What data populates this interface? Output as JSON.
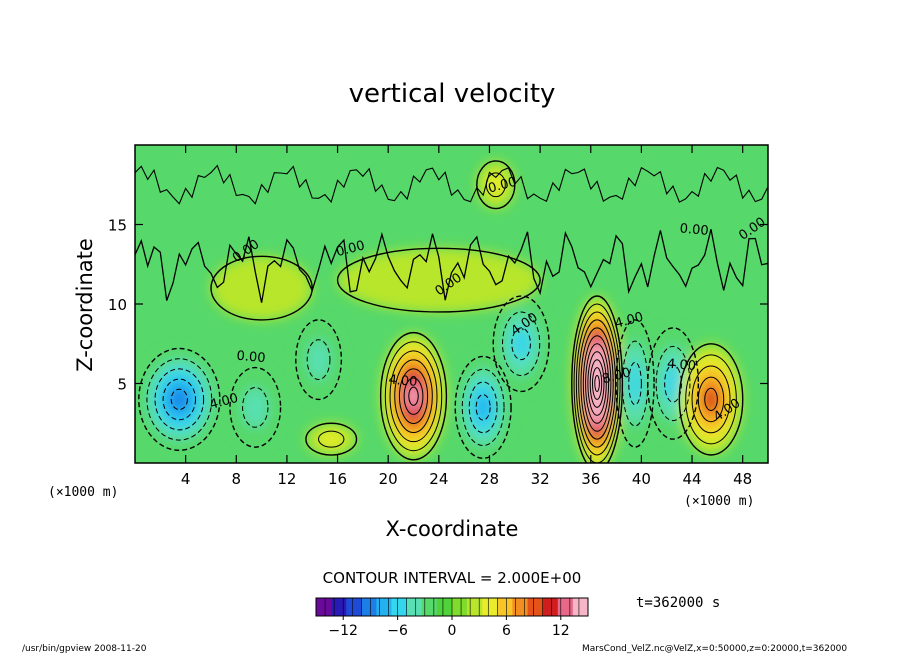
{
  "chart_data": {
    "type": "heatmap",
    "title": "vertical velocity",
    "xlabel": "X-coordinate",
    "ylabel": "Z-coordinate",
    "x_unit_left": "(×1000 m)",
    "x_unit_right": "(×1000 m)",
    "xlim": [
      0,
      50
    ],
    "ylim": [
      0,
      20
    ],
    "x_ticks": [
      4,
      8,
      12,
      16,
      20,
      24,
      28,
      32,
      36,
      40,
      44,
      48
    ],
    "y_ticks": [
      5,
      10,
      15
    ],
    "contour_interval_text": "CONTOUR INTERVAL = 2.000E+00",
    "time_text": "t=362000 s",
    "colorbar": {
      "ticks": [
        -12,
        -6,
        0,
        6,
        12
      ],
      "min": -15,
      "max": 15,
      "colors": [
        "#6a0a9a",
        "#2a1ab5",
        "#1f4ad8",
        "#1e7ee8",
        "#23b1ef",
        "#34d6ee",
        "#58e0b2",
        "#56d86a",
        "#4fd23a",
        "#7fdc2c",
        "#b8e62c",
        "#e8ec2c",
        "#f7c528",
        "#f38f20",
        "#e65318",
        "#d01e1e",
        "#e8688a",
        "#f6b6c8"
      ]
    },
    "contour_labels": [
      "0.00",
      "0.00",
      "0.00",
      "0.00",
      "0.00",
      "0.00",
      "0.00",
      "4.00",
      "4.00",
      "4.00",
      "4.00",
      "4.00",
      "4.00",
      "8.00"
    ],
    "cells": [
      {
        "x": 3.0,
        "z": 4.5,
        "w": 0.7
      },
      {
        "x": 3.5,
        "z": 4.0,
        "w": -9.0,
        "sx": 3.2,
        "sz": 3.2
      },
      {
        "x": 9.5,
        "z": 3.5,
        "w": -4.0,
        "sx": 2.0,
        "sz": 2.5
      },
      {
        "x": 14.5,
        "z": 6.5,
        "w": -4.5,
        "sx": 1.8,
        "sz": 2.5
      },
      {
        "x": 15.5,
        "z": 1.5,
        "w": 4.0,
        "sx": 2.0,
        "sz": 1.0
      },
      {
        "x": 22.0,
        "z": 4.2,
        "w": 14.0,
        "sx": 2.6,
        "sz": 4.0
      },
      {
        "x": 27.5,
        "z": 3.5,
        "w": -7.0,
        "sx": 2.2,
        "sz": 3.2
      },
      {
        "x": 30.5,
        "z": 7.5,
        "w": -5.0,
        "sx": 2.2,
        "sz": 3.0
      },
      {
        "x": 36.5,
        "z": 5.0,
        "w": 22.0,
        "sx": 2.0,
        "sz": 5.5
      },
      {
        "x": 39.5,
        "z": 5.0,
        "w": -5.0,
        "sx": 1.5,
        "sz": 4.0
      },
      {
        "x": 42.5,
        "z": 5.0,
        "w": -6.0,
        "sx": 2.0,
        "sz": 3.5
      },
      {
        "x": 45.5,
        "z": 4.0,
        "w": 10.0,
        "sx": 2.5,
        "sz": 3.5
      },
      {
        "x": 28.5,
        "z": 17.5,
        "w": 4.0,
        "sx": 1.5,
        "sz": 1.5
      },
      {
        "x": 24.0,
        "z": 11.5,
        "w": 2.0,
        "sx": 8.0,
        "sz": 2.0
      },
      {
        "x": 10.0,
        "z": 11.0,
        "w": 1.5,
        "sx": 4.0,
        "sz": 2.0
      }
    ],
    "footer_left": "/usr/bin/gpview   2008-11-20",
    "footer_right": "MarsCond_VelZ.nc@VelZ,x=0:50000,z=0:20000,t=362000"
  }
}
